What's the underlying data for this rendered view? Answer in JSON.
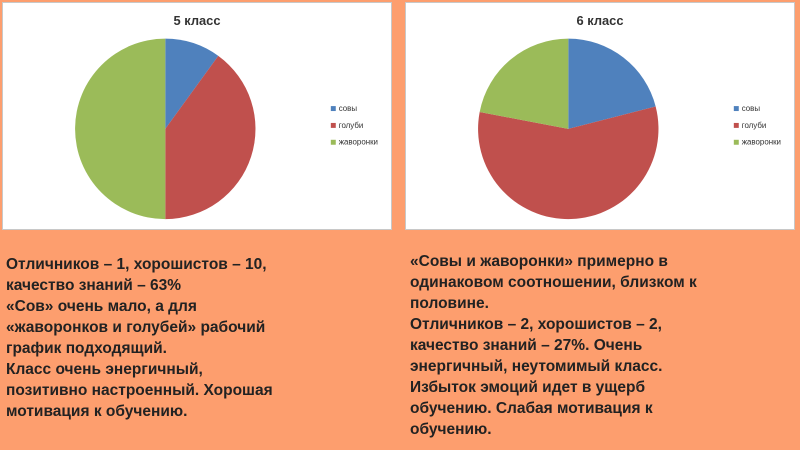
{
  "chart_data": [
    {
      "type": "pie",
      "title": "5 класс",
      "categories": [
        "совы",
        "голуби",
        "жаворонки"
      ],
      "values": [
        10,
        40,
        50
      ],
      "colors": [
        "#4f81bd",
        "#c0504d",
        "#9bbb59"
      ],
      "legend": "right"
    },
    {
      "type": "pie",
      "title": "6 класс",
      "categories": [
        "совы",
        "голуби",
        "жаворонки"
      ],
      "values": [
        21,
        57,
        22
      ],
      "colors": [
        "#4f81bd",
        "#c0504d",
        "#9bbb59"
      ],
      "legend": "right"
    }
  ],
  "left_text": [
    "Отличников – 1, хорошистов – 10,",
    "качество знаний – 63%",
    "«Сов» очень мало, а для",
    "«жаворонков и голубей» рабочий",
    "график подходящий.",
    "Класс очень энергичный,",
    "позитивно настроенный. Хорошая",
    "мотивация к обучению."
  ],
  "right_text": [
    "«Совы и жаворонки»  примерно в",
    "одинаковом соотношении, близком к",
    "половине.",
    "Отличников – 2, хорошистов – 2,",
    "качество знаний – 27%. Очень",
    "энергичный, неутомимый класс.",
    "Избыток эмоций идет в ущерб",
    "обучению.  Слабая мотивация к",
    "обучению."
  ],
  "background_color": "#fd9e6e"
}
